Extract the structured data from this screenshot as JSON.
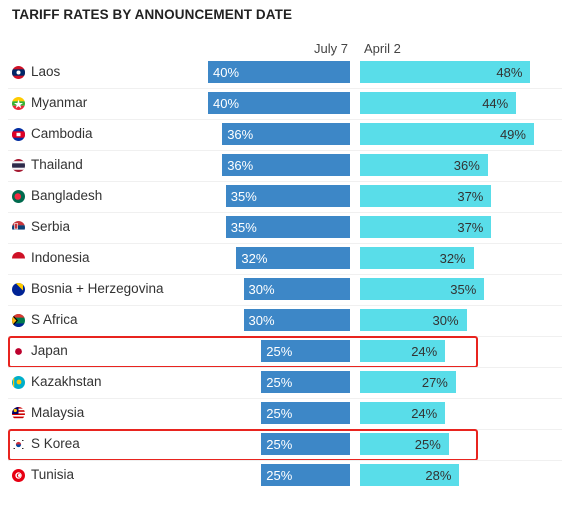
{
  "chart_data": {
    "type": "bar",
    "title": "TARIFF RATES BY ANNOUNCEMENT DATE",
    "categories": [
      "Laos",
      "Myanmar",
      "Cambodia",
      "Thailand",
      "Bangladesh",
      "Serbia",
      "Indonesia",
      "Bosnia + Herzegovina",
      "S Africa",
      "Japan",
      "Kazakhstan",
      "Malaysia",
      "S Korea",
      "Tunisia"
    ],
    "series": [
      {
        "name": "July 7",
        "values": [
          40,
          40,
          36,
          36,
          35,
          35,
          32,
          30,
          30,
          25,
          25,
          25,
          25,
          25
        ],
        "color": "#3d87c7"
      },
      {
        "name": "April 2",
        "values": [
          48,
          44,
          49,
          36,
          37,
          37,
          32,
          35,
          30,
          24,
          27,
          24,
          25,
          28
        ],
        "color": "#59dde9"
      }
    ],
    "value_suffix": "%",
    "highlighted": [
      "Japan",
      "S Korea"
    ],
    "highlight_color": "#e8241f"
  }
}
